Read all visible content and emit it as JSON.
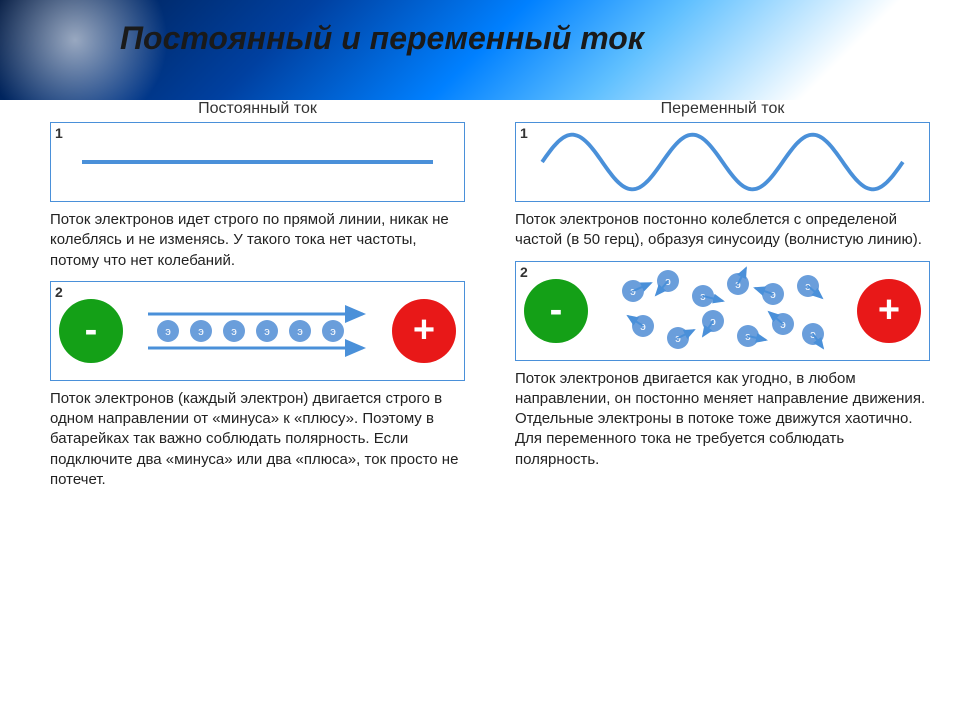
{
  "title": "Постоянный и переменный ток",
  "left": {
    "heading": "Постоянный ток",
    "panel1_num": "1",
    "panel2_num": "2",
    "desc1": "Поток электронов идет строго по прямой линии, никак не колеблясь и не изменясь. У такого тока нет частоты, потому что нет колебаний.",
    "desc2": "Поток электронов (каждый электрон) двигается строго в одном направлении от «минуса» к «плюсу». Поэтому в батарейках так важно соблюдать полярность. Если подключите два «минуса»  или два «плюса», ток просто не потечет.",
    "line": {
      "color": "#4a90d9",
      "width": 4,
      "y": 40
    },
    "electrons": {
      "count": 6,
      "color": "#6a9edb",
      "label": "э",
      "radius": 11,
      "arrow_color": "#4a90d9"
    }
  },
  "right": {
    "heading": "Переменный ток",
    "panel1_num": "1",
    "panel2_num": "2",
    "desc1": "Поток электронов постонно колеблется с определеной частой (в 50 герц), образуя синусоиду (волнистую линию).",
    "desc2": "Поток электронов двигается как угодно, в любом направлении, он постонно меняет направление движения. Отдельные электроны в потоке тоже движутся хаотично. Для переменного тока не требуется соблюдать полярность.",
    "sine": {
      "color": "#4a90d9",
      "width": 4,
      "amplitude": 28,
      "periods": 3
    },
    "electrons": {
      "count": 12,
      "color": "#6a9edb",
      "label": "э",
      "radius": 11,
      "arrow_color": "#4a90d9"
    }
  },
  "terminals": {
    "minus_color": "#14a017",
    "minus_label": "-",
    "plus_color": "#e81818",
    "plus_label": "+"
  },
  "colors": {
    "border": "#4a90d9",
    "text": "#222222",
    "background": "#ffffff"
  }
}
